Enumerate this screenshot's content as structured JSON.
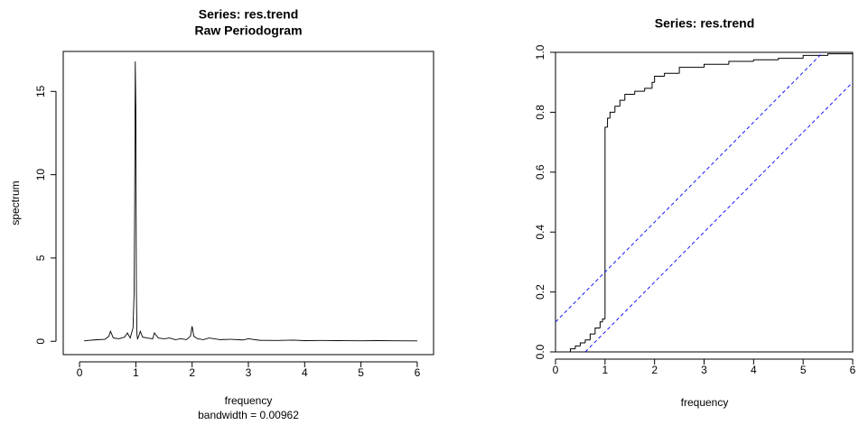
{
  "chart_data": [
    {
      "type": "line",
      "title": "Series: res.trend",
      "subtitle": "Raw Periodogram",
      "x_label": "frequency",
      "x_sublabel": "bandwidth = 0.00962",
      "y_label": "spectrum",
      "xlim": [
        -0.29,
        6.29
      ],
      "xticks": [
        0,
        1,
        2,
        3,
        4,
        5,
        6
      ],
      "ylim": [
        -0.8,
        17.4
      ],
      "yticks": [
        0,
        5,
        10,
        15
      ],
      "series": [
        {
          "color": "#000000",
          "x": [
            0.08,
            0.15,
            0.25,
            0.35,
            0.45,
            0.52,
            0.55,
            0.6,
            0.7,
            0.8,
            0.85,
            0.9,
            0.95,
            0.97,
            0.98,
            0.99,
            1.0,
            1.005,
            1.01,
            1.02,
            1.03,
            1.05,
            1.08,
            1.12,
            1.2,
            1.3,
            1.33,
            1.4,
            1.5,
            1.6,
            1.7,
            1.8,
            1.9,
            1.97,
            2.0,
            2.03,
            2.1,
            2.2,
            2.3,
            2.5,
            2.7,
            2.9,
            3.0,
            3.2,
            3.5,
            3.8,
            4.0,
            4.3,
            4.6,
            5.0,
            5.3,
            5.6,
            6.0
          ],
          "values": [
            0.02,
            0.05,
            0.08,
            0.1,
            0.12,
            0.3,
            0.6,
            0.2,
            0.15,
            0.25,
            0.5,
            0.2,
            0.8,
            3,
            8.5,
            16.8,
            14,
            8.5,
            3,
            0.4,
            0.15,
            0.3,
            0.6,
            0.25,
            0.2,
            0.15,
            0.5,
            0.2,
            0.15,
            0.2,
            0.1,
            0.15,
            0.1,
            0.3,
            0.9,
            0.3,
            0.15,
            0.1,
            0.2,
            0.1,
            0.12,
            0.08,
            0.15,
            0.06,
            0.05,
            0.07,
            0.04,
            0.05,
            0.04,
            0.03,
            0.04,
            0.03,
            0.02
          ]
        }
      ]
    },
    {
      "type": "line",
      "title": "Series:  res.trend",
      "x_label": "frequency",
      "xlim": [
        0,
        6
      ],
      "xticks": [
        0,
        1,
        2,
        3,
        4,
        5,
        6
      ],
      "ylim": [
        0,
        1
      ],
      "yticks": [
        {
          "value": 0,
          "label": "0.0"
        },
        {
          "value": 0.2,
          "label": "0.2"
        },
        {
          "value": 0.4,
          "label": "0.4"
        },
        {
          "value": 0.6,
          "label": "0.6"
        },
        {
          "value": 0.8,
          "label": "0.8"
        },
        {
          "value": 1,
          "label": "1.0"
        }
      ],
      "series": [
        {
          "color": "#000000",
          "step": true,
          "x": [
            0.2,
            0.3,
            0.4,
            0.5,
            0.6,
            0.7,
            0.8,
            0.9,
            0.95,
            1.0,
            1.05,
            1.1,
            1.2,
            1.3,
            1.4,
            1.6,
            1.8,
            1.95,
            2.0,
            2.2,
            2.5,
            3.0,
            3.5,
            4.0,
            4.5,
            5.0,
            5.5,
            6.0
          ],
          "values": [
            0,
            0.01,
            0.02,
            0.03,
            0.04,
            0.06,
            0.08,
            0.1,
            0.11,
            0.75,
            0.78,
            0.8,
            0.82,
            0.84,
            0.86,
            0.87,
            0.88,
            0.9,
            0.92,
            0.93,
            0.95,
            0.96,
            0.97,
            0.975,
            0.98,
            0.99,
            0.995,
            1.0
          ]
        },
        {
          "color": "#0000ff",
          "dashed": true,
          "x": [
            0,
            5.4
          ],
          "values": [
            0.1,
            1.0
          ]
        },
        {
          "color": "#0000ff",
          "dashed": true,
          "x": [
            0.6,
            6
          ],
          "values": [
            0,
            0.9
          ]
        }
      ]
    }
  ]
}
